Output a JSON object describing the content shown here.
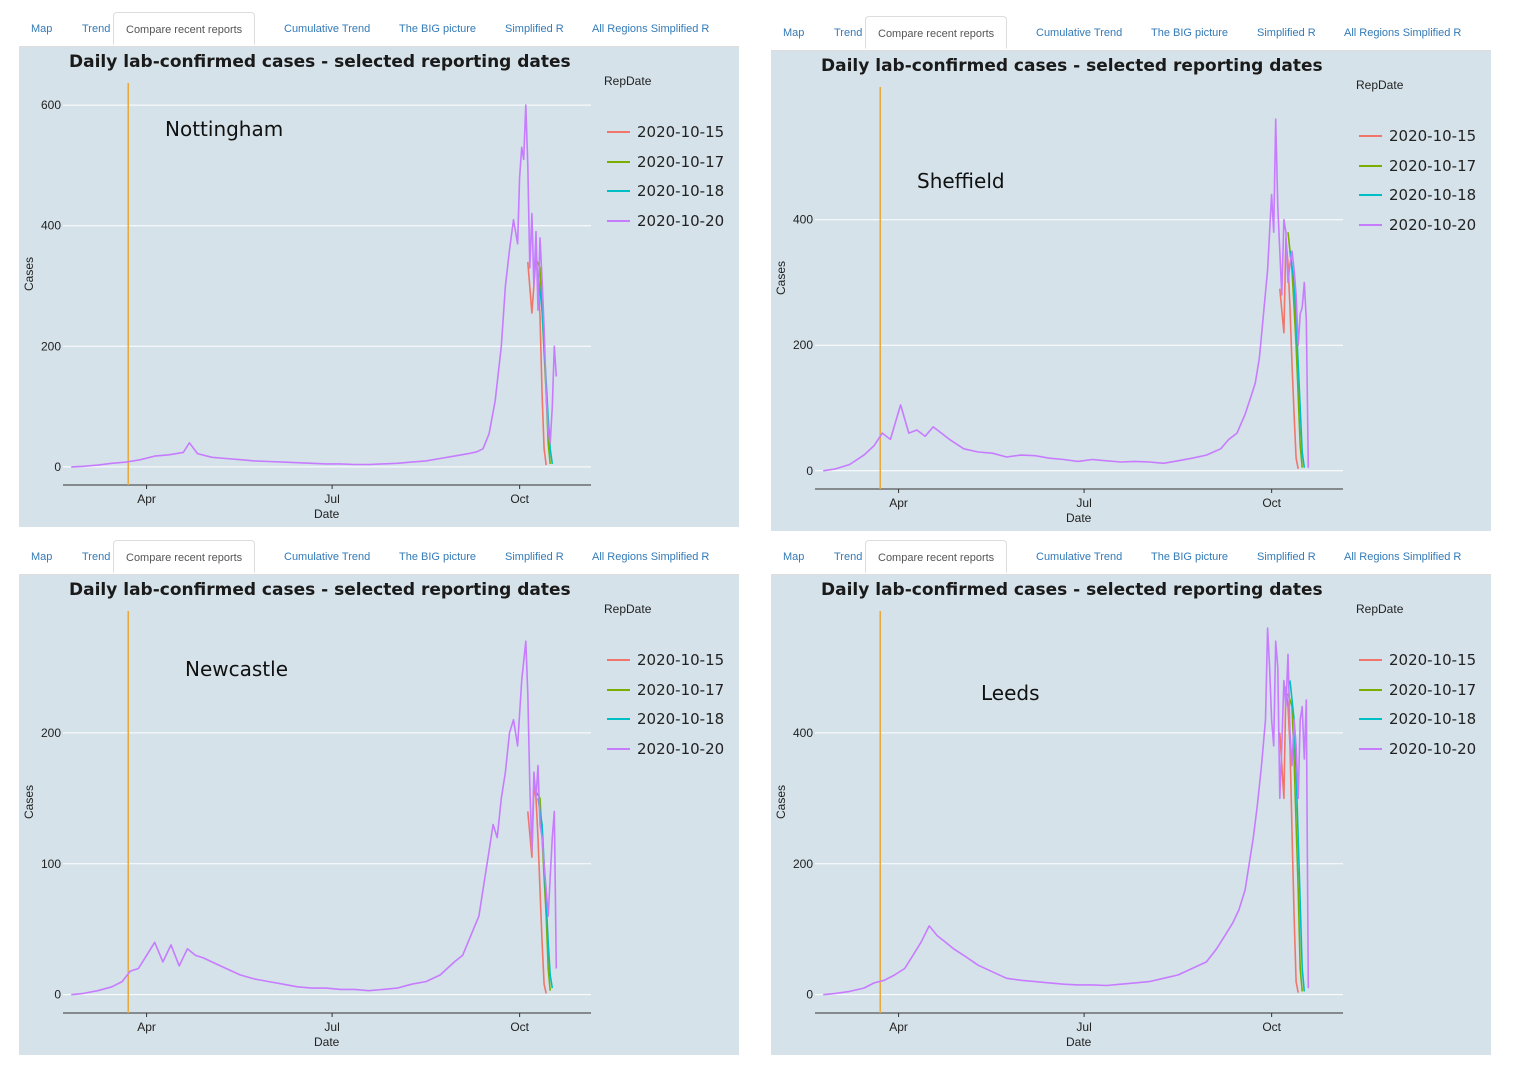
{
  "tabs": [
    "Map",
    "Trend",
    "Compare recent reports",
    "Cumulative Trend",
    "The BIG picture",
    "Simplified R",
    "All Regions Simplified R"
  ],
  "active_tab": 2,
  "legend_title": "RepDate",
  "colors": {
    "2020-10-15": "#f0766b",
    "2020-10-17": "#7cae00",
    "2020-10-18": "#00bfc4",
    "2020-10-20": "#c77cff",
    "marker": "#e8a93a",
    "panel_bg": "#d5e2e9"
  },
  "chart_data": [
    {
      "type": "line",
      "region": "Nottingham",
      "title": "Daily lab-confirmed cases - selected reporting dates",
      "xlabel": "Date",
      "ylabel": "Cases",
      "xlim": [
        "2020-02-20",
        "2020-11-05"
      ],
      "ylim": [
        -30,
        630
      ],
      "yticks": [
        0,
        200,
        400,
        600
      ],
      "xticks": [
        {
          "date": "2020-04-01",
          "label": "Apr"
        },
        {
          "date": "2020-07-01",
          "label": "Jul"
        },
        {
          "date": "2020-10-01",
          "label": "Oct"
        }
      ],
      "vline": "2020-03-23",
      "series": [
        {
          "name": "2020-10-15",
          "x": [
            "2020-10-05",
            "2020-10-07",
            "2020-10-09",
            "2020-10-10",
            "2020-10-11",
            "2020-10-12",
            "2020-10-13",
            "2020-10-14"
          ],
          "y": [
            340,
            255,
            350,
            310,
            250,
            120,
            30,
            3
          ]
        },
        {
          "name": "2020-10-17",
          "x": [
            "2020-10-09",
            "2020-10-11",
            "2020-10-12",
            "2020-10-13",
            "2020-10-14",
            "2020-10-15",
            "2020-10-16"
          ],
          "y": [
            345,
            330,
            260,
            190,
            120,
            40,
            5
          ]
        },
        {
          "name": "2020-10-18",
          "x": [
            "2020-10-10",
            "2020-10-12",
            "2020-10-13",
            "2020-10-14",
            "2020-10-15",
            "2020-10-16",
            "2020-10-17"
          ],
          "y": [
            320,
            260,
            200,
            140,
            80,
            30,
            5
          ]
        },
        {
          "name": "2020-10-20",
          "x": [
            "2020-02-24",
            "2020-03-01",
            "2020-03-08",
            "2020-03-15",
            "2020-03-22",
            "2020-03-29",
            "2020-04-05",
            "2020-04-12",
            "2020-04-19",
            "2020-04-22",
            "2020-04-26",
            "2020-05-03",
            "2020-05-10",
            "2020-05-17",
            "2020-05-24",
            "2020-05-31",
            "2020-06-07",
            "2020-06-14",
            "2020-06-21",
            "2020-06-28",
            "2020-07-05",
            "2020-07-12",
            "2020-07-19",
            "2020-07-26",
            "2020-08-02",
            "2020-08-09",
            "2020-08-16",
            "2020-08-23",
            "2020-08-30",
            "2020-09-06",
            "2020-09-10",
            "2020-09-13",
            "2020-09-16",
            "2020-09-19",
            "2020-09-22",
            "2020-09-24",
            "2020-09-26",
            "2020-09-28",
            "2020-09-30",
            "2020-10-01",
            "2020-10-02",
            "2020-10-03",
            "2020-10-04",
            "2020-10-05",
            "2020-10-06",
            "2020-10-07",
            "2020-10-08",
            "2020-10-09",
            "2020-10-10",
            "2020-10-11",
            "2020-10-12",
            "2020-10-13",
            "2020-10-14",
            "2020-10-15",
            "2020-10-16",
            "2020-10-17",
            "2020-10-18",
            "2020-10-19"
          ],
          "y": [
            0,
            1,
            3,
            6,
            8,
            12,
            18,
            20,
            24,
            40,
            22,
            16,
            14,
            12,
            10,
            9,
            8,
            7,
            6,
            5,
            5,
            4,
            4,
            5,
            6,
            8,
            10,
            14,
            18,
            22,
            25,
            30,
            55,
            110,
            200,
            300,
            360,
            410,
            370,
            480,
            530,
            510,
            600,
            500,
            330,
            420,
            300,
            390,
            260,
            380,
            310,
            230,
            120,
            60,
            40,
            100,
            200,
            150
          ]
        }
      ]
    },
    {
      "type": "line",
      "region": "Sheffield",
      "title": "Daily lab-confirmed cases - selected reporting dates",
      "xlabel": "Date",
      "ylabel": "Cases",
      "xlim": [
        "2020-02-20",
        "2020-11-05"
      ],
      "ylim": [
        -29,
        605
      ],
      "yticks": [
        0,
        200,
        400
      ],
      "xticks": [
        {
          "date": "2020-04-01",
          "label": "Apr"
        },
        {
          "date": "2020-07-01",
          "label": "Jul"
        },
        {
          "date": "2020-10-01",
          "label": "Oct"
        }
      ],
      "vline": "2020-03-23",
      "series": [
        {
          "name": "2020-10-15",
          "x": [
            "2020-10-05",
            "2020-10-07",
            "2020-10-08",
            "2020-10-09",
            "2020-10-10",
            "2020-10-11",
            "2020-10-12",
            "2020-10-13",
            "2020-10-14"
          ],
          "y": [
            290,
            220,
            370,
            330,
            260,
            170,
            90,
            20,
            3
          ]
        },
        {
          "name": "2020-10-17",
          "x": [
            "2020-10-09",
            "2020-10-11",
            "2020-10-12",
            "2020-10-13",
            "2020-10-14",
            "2020-10-15",
            "2020-10-16"
          ],
          "y": [
            380,
            320,
            260,
            200,
            120,
            40,
            5
          ]
        },
        {
          "name": "2020-10-18",
          "x": [
            "2020-10-10",
            "2020-10-12",
            "2020-10-13",
            "2020-10-14",
            "2020-10-15",
            "2020-10-16",
            "2020-10-17"
          ],
          "y": [
            350,
            300,
            240,
            170,
            100,
            30,
            5
          ]
        },
        {
          "name": "2020-10-20",
          "x": [
            "2020-02-24",
            "2020-03-01",
            "2020-03-08",
            "2020-03-15",
            "2020-03-20",
            "2020-03-24",
            "2020-03-28",
            "2020-04-02",
            "2020-04-06",
            "2020-04-10",
            "2020-04-14",
            "2020-04-18",
            "2020-04-22",
            "2020-04-26",
            "2020-05-03",
            "2020-05-10",
            "2020-05-17",
            "2020-05-24",
            "2020-05-31",
            "2020-06-07",
            "2020-06-14",
            "2020-06-21",
            "2020-06-28",
            "2020-07-05",
            "2020-07-12",
            "2020-07-19",
            "2020-07-26",
            "2020-08-02",
            "2020-08-09",
            "2020-08-16",
            "2020-08-23",
            "2020-08-30",
            "2020-09-06",
            "2020-09-10",
            "2020-09-14",
            "2020-09-18",
            "2020-09-21",
            "2020-09-23",
            "2020-09-25",
            "2020-09-27",
            "2020-09-29",
            "2020-10-01",
            "2020-10-02",
            "2020-10-03",
            "2020-10-04",
            "2020-10-05",
            "2020-10-06",
            "2020-10-07",
            "2020-10-08",
            "2020-10-09",
            "2020-10-10",
            "2020-10-11",
            "2020-10-12",
            "2020-10-13",
            "2020-10-14",
            "2020-10-15",
            "2020-10-16",
            "2020-10-17",
            "2020-10-18",
            "2020-10-19"
          ],
          "y": [
            0,
            3,
            10,
            25,
            40,
            60,
            50,
            105,
            60,
            65,
            55,
            70,
            60,
            50,
            35,
            30,
            28,
            22,
            25,
            24,
            20,
            18,
            15,
            18,
            16,
            14,
            15,
            14,
            12,
            16,
            20,
            25,
            35,
            50,
            60,
            90,
            120,
            140,
            180,
            250,
            320,
            440,
            380,
            560,
            420,
            350,
            280,
            400,
            380,
            300,
            330,
            350,
            320,
            280,
            200,
            250,
            260,
            300,
            240,
            5
          ]
        }
      ]
    },
    {
      "type": "line",
      "region": "Newcastle",
      "title": "Daily lab-confirmed cases - selected reporting dates",
      "xlabel": "Date",
      "ylabel": "Cases",
      "xlim": [
        "2020-02-20",
        "2020-11-05"
      ],
      "ylim": [
        -14,
        290
      ],
      "yticks": [
        0,
        100,
        200
      ],
      "xticks": [
        {
          "date": "2020-04-01",
          "label": "Apr"
        },
        {
          "date": "2020-07-01",
          "label": "Jul"
        },
        {
          "date": "2020-10-01",
          "label": "Oct"
        }
      ],
      "vline": "2020-03-23",
      "series": [
        {
          "name": "2020-10-15",
          "x": [
            "2020-10-05",
            "2020-10-07",
            "2020-10-08",
            "2020-10-09",
            "2020-10-10",
            "2020-10-11",
            "2020-10-12",
            "2020-10-13",
            "2020-10-14"
          ],
          "y": [
            140,
            105,
            160,
            150,
            120,
            80,
            40,
            8,
            1
          ]
        },
        {
          "name": "2020-10-17",
          "x": [
            "2020-10-09",
            "2020-10-11",
            "2020-10-12",
            "2020-10-13",
            "2020-10-14",
            "2020-10-15",
            "2020-10-16"
          ],
          "y": [
            155,
            150,
            120,
            90,
            60,
            20,
            3
          ]
        },
        {
          "name": "2020-10-18",
          "x": [
            "2020-10-10",
            "2020-10-12",
            "2020-10-13",
            "2020-10-14",
            "2020-10-15",
            "2020-10-16",
            "2020-10-17"
          ],
          "y": [
            150,
            130,
            100,
            70,
            40,
            15,
            5
          ]
        },
        {
          "name": "2020-10-20",
          "x": [
            "2020-02-24",
            "2020-03-01",
            "2020-03-08",
            "2020-03-15",
            "2020-03-20",
            "2020-03-24",
            "2020-03-28",
            "2020-04-01",
            "2020-04-05",
            "2020-04-09",
            "2020-04-13",
            "2020-04-17",
            "2020-04-21",
            "2020-04-25",
            "2020-04-29",
            "2020-05-03",
            "2020-05-10",
            "2020-05-17",
            "2020-05-24",
            "2020-05-31",
            "2020-06-07",
            "2020-06-14",
            "2020-06-21",
            "2020-06-28",
            "2020-07-05",
            "2020-07-12",
            "2020-07-19",
            "2020-07-26",
            "2020-08-02",
            "2020-08-09",
            "2020-08-16",
            "2020-08-23",
            "2020-08-30",
            "2020-09-03",
            "2020-09-07",
            "2020-09-11",
            "2020-09-14",
            "2020-09-16",
            "2020-09-18",
            "2020-09-20",
            "2020-09-22",
            "2020-09-24",
            "2020-09-26",
            "2020-09-28",
            "2020-09-30",
            "2020-10-02",
            "2020-10-04",
            "2020-10-05",
            "2020-10-06",
            "2020-10-07",
            "2020-10-08",
            "2020-10-09",
            "2020-10-10",
            "2020-10-11",
            "2020-10-12",
            "2020-10-13",
            "2020-10-14",
            "2020-10-15",
            "2020-10-16",
            "2020-10-17",
            "2020-10-18",
            "2020-10-19"
          ],
          "y": [
            0,
            1,
            3,
            6,
            10,
            18,
            20,
            30,
            40,
            25,
            38,
            22,
            35,
            30,
            28,
            25,
            20,
            15,
            12,
            10,
            8,
            6,
            5,
            5,
            4,
            4,
            3,
            4,
            5,
            8,
            10,
            15,
            25,
            30,
            45,
            60,
            90,
            110,
            130,
            120,
            150,
            170,
            200,
            210,
            190,
            240,
            270,
            230,
            160,
            110,
            170,
            150,
            175,
            130,
            120,
            100,
            80,
            60,
            90,
            120,
            140,
            20
          ]
        }
      ]
    },
    {
      "type": "line",
      "region": "Leeds",
      "title": "Daily lab-confirmed cases - selected reporting dates",
      "xlabel": "Date",
      "ylabel": "Cases",
      "xlim": [
        "2020-02-20",
        "2020-11-05"
      ],
      "ylim": [
        -28,
        580
      ],
      "yticks": [
        0,
        200,
        400
      ],
      "xticks": [
        {
          "date": "2020-04-01",
          "label": "Apr"
        },
        {
          "date": "2020-07-01",
          "label": "Jul"
        },
        {
          "date": "2020-10-01",
          "label": "Oct"
        }
      ],
      "vline": "2020-03-23",
      "series": [
        {
          "name": "2020-10-15",
          "x": [
            "2020-10-05",
            "2020-10-07",
            "2020-10-08",
            "2020-10-09",
            "2020-10-10",
            "2020-10-11",
            "2020-10-12",
            "2020-10-13",
            "2020-10-14"
          ],
          "y": [
            400,
            300,
            470,
            440,
            380,
            250,
            120,
            20,
            3
          ]
        },
        {
          "name": "2020-10-17",
          "x": [
            "2020-10-09",
            "2020-10-11",
            "2020-10-12",
            "2020-10-13",
            "2020-10-14",
            "2020-10-15",
            "2020-10-16"
          ],
          "y": [
            460,
            440,
            360,
            260,
            160,
            40,
            5
          ]
        },
        {
          "name": "2020-10-18",
          "x": [
            "2020-10-10",
            "2020-10-12",
            "2020-10-13",
            "2020-10-14",
            "2020-10-15",
            "2020-10-16",
            "2020-10-17"
          ],
          "y": [
            480,
            420,
            340,
            240,
            140,
            40,
            5
          ]
        },
        {
          "name": "2020-10-20",
          "x": [
            "2020-02-24",
            "2020-03-01",
            "2020-03-08",
            "2020-03-15",
            "2020-03-20",
            "2020-03-25",
            "2020-03-30",
            "2020-04-04",
            "2020-04-08",
            "2020-04-12",
            "2020-04-16",
            "2020-04-20",
            "2020-04-24",
            "2020-04-28",
            "2020-05-03",
            "2020-05-10",
            "2020-05-17",
            "2020-05-24",
            "2020-05-31",
            "2020-06-07",
            "2020-06-14",
            "2020-06-21",
            "2020-06-28",
            "2020-07-05",
            "2020-07-12",
            "2020-07-19",
            "2020-07-26",
            "2020-08-02",
            "2020-08-09",
            "2020-08-16",
            "2020-08-23",
            "2020-08-30",
            "2020-09-04",
            "2020-09-08",
            "2020-09-12",
            "2020-09-15",
            "2020-09-18",
            "2020-09-20",
            "2020-09-22",
            "2020-09-24",
            "2020-09-26",
            "2020-09-28",
            "2020-09-29",
            "2020-09-30",
            "2020-10-01",
            "2020-10-02",
            "2020-10-03",
            "2020-10-04",
            "2020-10-05",
            "2020-10-06",
            "2020-10-07",
            "2020-10-08",
            "2020-10-09",
            "2020-10-10",
            "2020-10-11",
            "2020-10-12",
            "2020-10-13",
            "2020-10-14",
            "2020-10-15",
            "2020-10-16",
            "2020-10-17",
            "2020-10-18",
            "2020-10-19"
          ],
          "y": [
            0,
            2,
            5,
            10,
            18,
            22,
            30,
            40,
            60,
            80,
            105,
            90,
            80,
            70,
            60,
            45,
            35,
            25,
            22,
            20,
            18,
            16,
            15,
            15,
            14,
            16,
            18,
            20,
            25,
            30,
            40,
            50,
            70,
            90,
            110,
            130,
            160,
            200,
            240,
            290,
            350,
            420,
            560,
            500,
            420,
            380,
            540,
            500,
            300,
            380,
            480,
            440,
            520,
            400,
            350,
            420,
            380,
            300,
            420,
            440,
            360,
            450,
            10
          ]
        }
      ]
    }
  ]
}
